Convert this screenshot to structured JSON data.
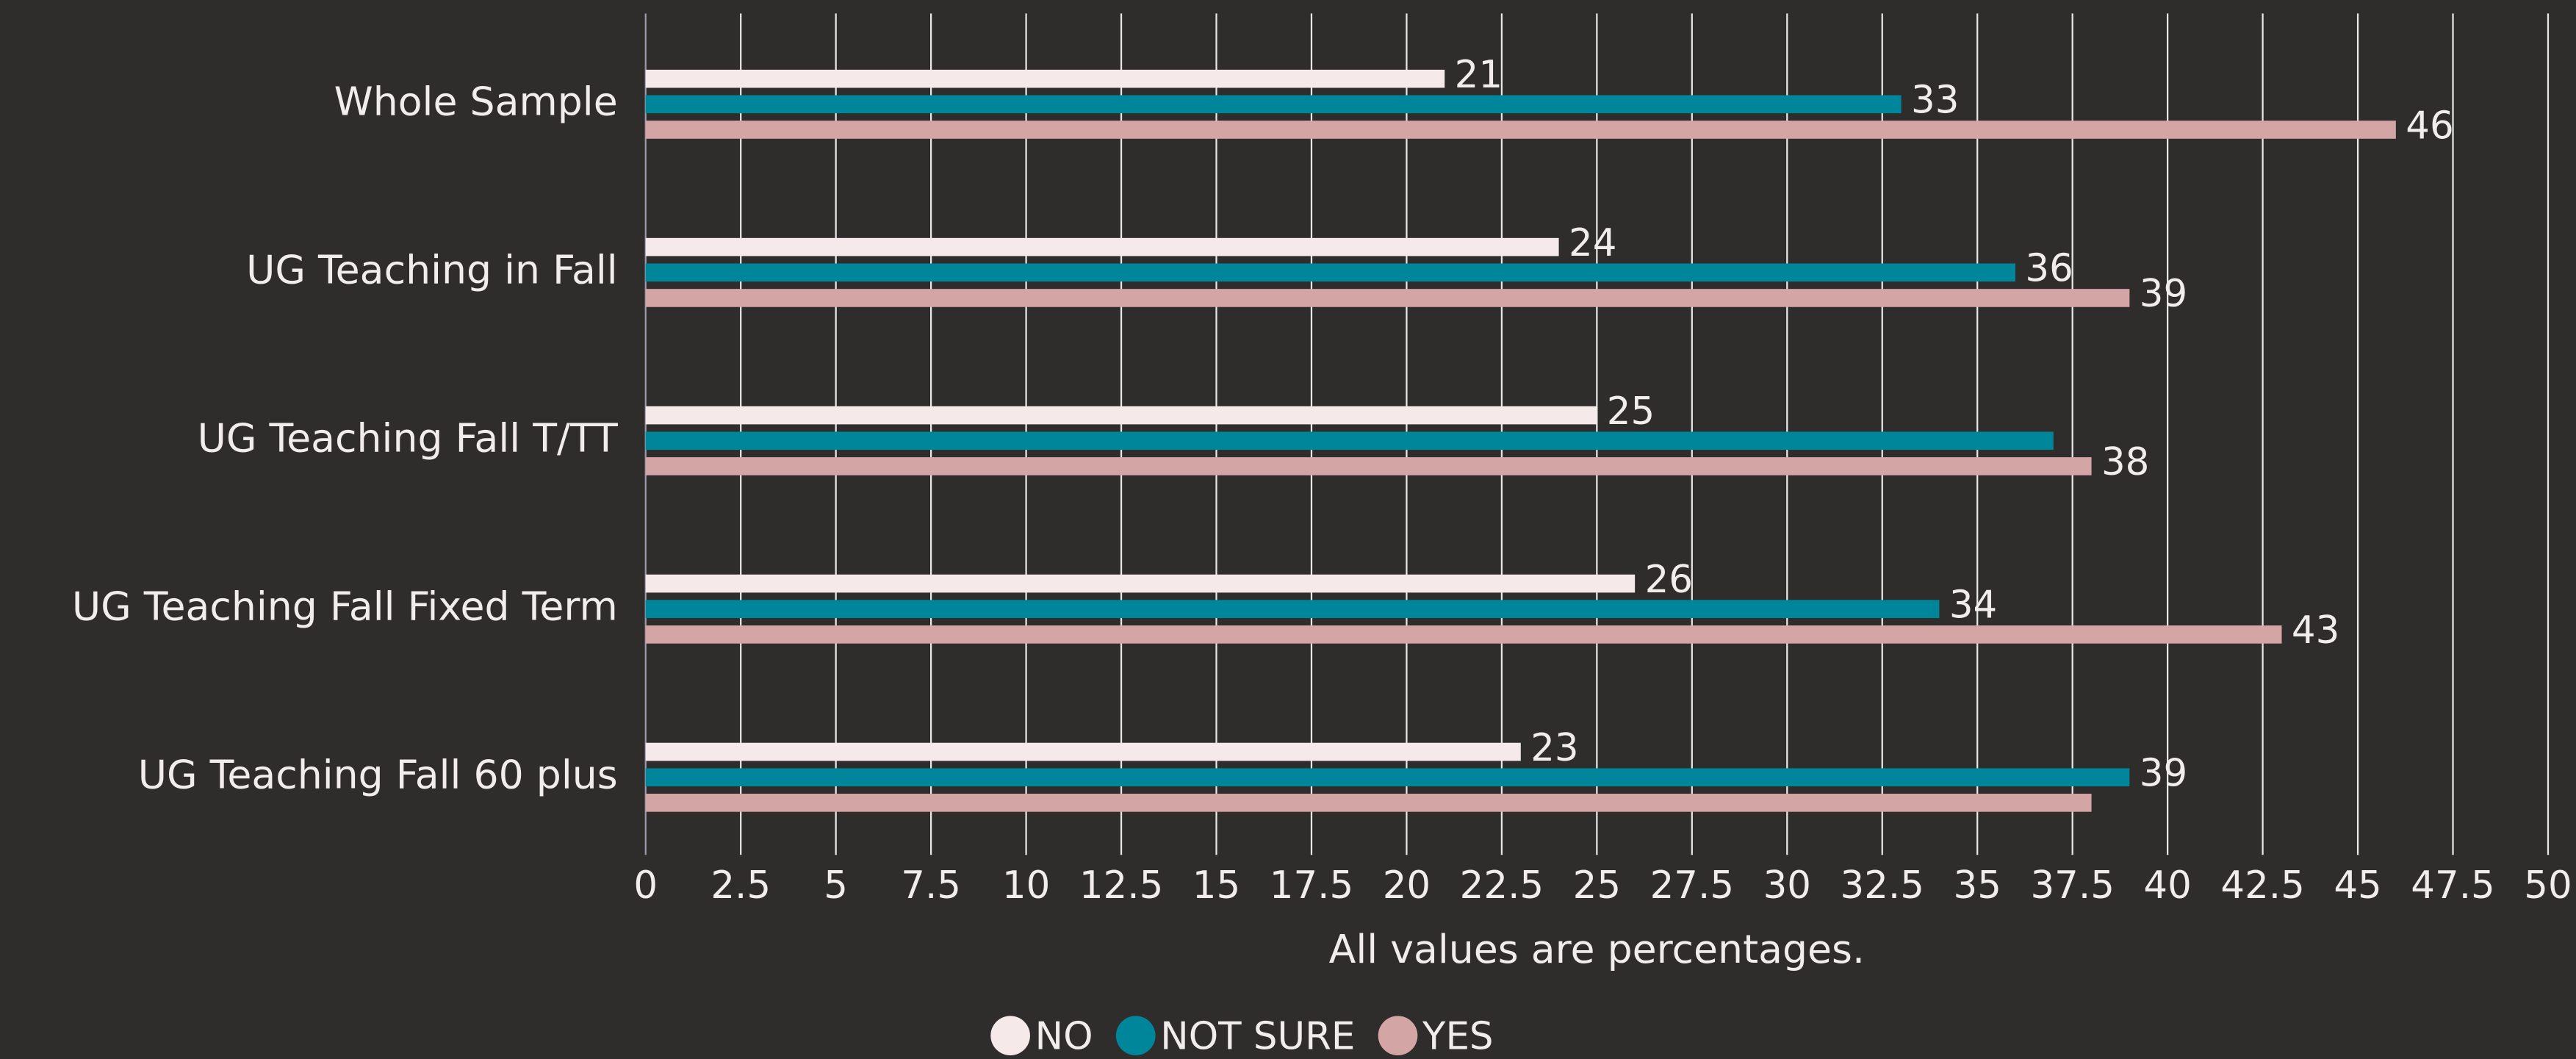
{
  "chart_data": {
    "type": "hbar",
    "categories": [
      "Whole Sample",
      "UG Teaching in Fall",
      "UG Teaching Fall T/TT",
      "UG Teaching Fall Fixed Term",
      "UG Teaching Fall 60 plus"
    ],
    "series": [
      {
        "name": "NO",
        "color": "#f5e9e9",
        "values": [
          21,
          24,
          25,
          26,
          23
        ],
        "value_labels": [
          21,
          24,
          25,
          26,
          23
        ]
      },
      {
        "name": "NOT SURE",
        "color": "#00869a",
        "values": [
          33,
          36,
          37,
          34,
          39
        ],
        "value_labels": [
          33,
          36,
          null,
          34,
          39
        ]
      },
      {
        "name": "YES",
        "color": "#d4a5a5",
        "values": [
          46,
          39,
          38,
          43,
          38
        ],
        "value_labels": [
          46,
          39,
          38,
          43,
          null
        ]
      }
    ],
    "xlabel": "All values are percentages.",
    "xlim": [
      0,
      50
    ],
    "xticks": [
      0,
      2.5,
      5,
      7.5,
      10,
      12.5,
      15,
      17.5,
      20,
      22.5,
      25,
      27.5,
      30,
      32.5,
      35,
      37.5,
      40,
      42.5,
      45,
      47.5,
      50
    ],
    "grid": true,
    "legend": "bottom"
  }
}
